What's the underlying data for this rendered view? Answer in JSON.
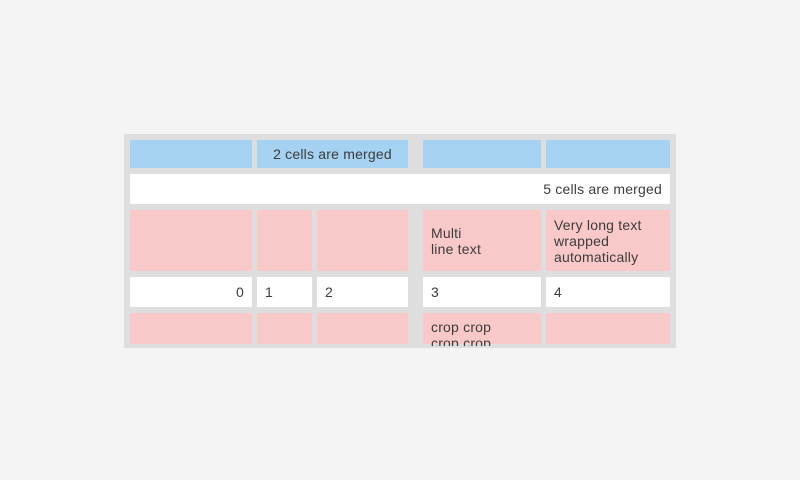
{
  "colors": {
    "page_bg": "#f4f4f4",
    "table_bg": "#dedede",
    "cell_blue": "#a5d1f2",
    "cell_pink": "#f9c8c8",
    "cell_white": "#ffffff",
    "text": "#3c3c3c"
  },
  "table": {
    "rows": [
      {
        "name": "blue header row",
        "cells": [
          {
            "text": ""
          },
          {
            "text": "2 cells are merged"
          },
          {
            "text": ""
          },
          {
            "text": ""
          }
        ]
      },
      {
        "name": "full width merged row",
        "cells": [
          {
            "text": "5 cells are merged"
          }
        ]
      },
      {
        "name": "pink multiline row",
        "cells": [
          {
            "text": ""
          },
          {
            "text": ""
          },
          {
            "text": ""
          },
          {
            "text": "Multi\nline text"
          },
          {
            "text": "Very long text wrapped automatically"
          }
        ]
      },
      {
        "name": "number row",
        "cells": [
          {
            "text": "0"
          },
          {
            "text": "1"
          },
          {
            "text": "2"
          },
          {
            "text": "3"
          },
          {
            "text": "4"
          }
        ]
      },
      {
        "name": "cropped pink row",
        "cells": [
          {
            "text": ""
          },
          {
            "text": ""
          },
          {
            "text": ""
          },
          {
            "text": "crop crop crop crop"
          },
          {
            "text": ""
          }
        ]
      }
    ]
  }
}
